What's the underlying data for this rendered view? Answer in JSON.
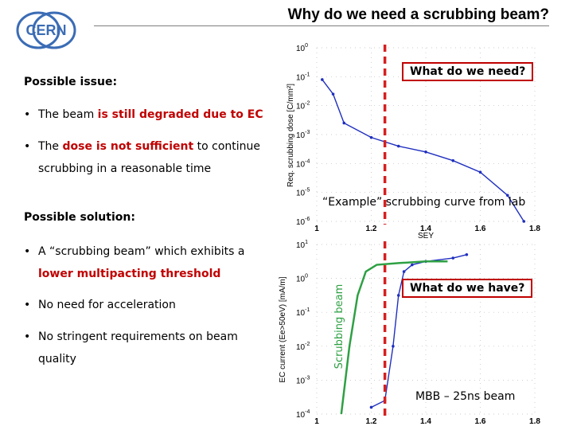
{
  "slide": {
    "title": "Why do we need a scrubbing beam?",
    "logo_text": "CERN"
  },
  "left": {
    "issue_header": "Possible issue:",
    "issue_1_pre": "The beam ",
    "issue_1_red": "is still degraded due to EC",
    "issue_2_pre": "The ",
    "issue_2_red": "dose is not sufficient",
    "issue_2_post": " to continue",
    "issue_2_cont": "scrubbing in a reasonable time",
    "solution_header": "Possible solution:",
    "sol_1": "A “scrubbing beam” which exhibits  a",
    "sol_1_red": "lower multipacting threshold",
    "sol_2": "No need for acceleration",
    "sol_3": "No stringent requirements on beam",
    "sol_3_cont": "quality",
    "bullet_glyph": "•"
  },
  "callouts": {
    "need": "What do we need?",
    "have": "What do we have?",
    "example_caption": "“Example” scrubbing curve from lab",
    "mbb_caption": "MBB – 25ns beam",
    "scrubbing_beam_label": "Scrubbing beam"
  },
  "colors": {
    "accent_red": "#c00000",
    "dashed_line": "#d42020",
    "curve_blue": "#1f2fbf",
    "scrub_green": "#2ea043"
  },
  "chart_data": [
    {
      "type": "line",
      "xlabel": "SEY",
      "ylabel": "Req. scrubbing dose [C/mm²]",
      "yscale": "log",
      "xlim": [
        1,
        1.8
      ],
      "ylim_exp": [
        -6,
        0
      ],
      "xticks": [
        "1",
        "1.2",
        "1.4",
        "1.6",
        "1.8"
      ],
      "yticks": [
        {
          "base": "10",
          "exp": "0"
        },
        {
          "base": "10",
          "exp": "-1"
        },
        {
          "base": "10",
          "exp": "-2"
        },
        {
          "base": "10",
          "exp": "-3"
        },
        {
          "base": "10",
          "exp": "-4"
        },
        {
          "base": "10",
          "exp": "-5"
        },
        {
          "base": "10",
          "exp": "-6"
        }
      ],
      "series": [
        {
          "x": [
            1.02,
            1.06,
            1.1,
            1.2,
            1.3,
            1.4,
            1.5,
            1.6,
            1.7,
            1.76
          ],
          "log_y": [
            -1.1,
            -1.6,
            -2.6,
            -3.1,
            -3.4,
            -3.6,
            -3.9,
            -4.3,
            -5.1,
            -6.0
          ]
        }
      ],
      "marker_x": 1.25
    },
    {
      "type": "line",
      "ylabel": "EC current (Ee>50eV) [mA/m]",
      "yscale": "log",
      "xlim": [
        1,
        1.8
      ],
      "ylim_exp": [
        -4,
        1
      ],
      "xticks": [
        "1",
        "1.2",
        "1.4",
        "1.6",
        "1.8"
      ],
      "yticks": [
        {
          "base": "10",
          "exp": "1"
        },
        {
          "base": "10",
          "exp": "0"
        },
        {
          "base": "10",
          "exp": "-1"
        },
        {
          "base": "10",
          "exp": "-2"
        },
        {
          "base": "10",
          "exp": "-3"
        },
        {
          "base": "10",
          "exp": "-4"
        }
      ],
      "series": [
        {
          "name": "MBB – 25ns beam",
          "x": [
            1.2,
            1.25,
            1.28,
            1.3,
            1.32,
            1.35,
            1.4,
            1.5,
            1.55
          ],
          "log_y": [
            -3.8,
            -3.6,
            -2.0,
            -0.5,
            0.2,
            0.4,
            0.5,
            0.6,
            0.7
          ]
        },
        {
          "name": "Scrubbing beam",
          "x": [
            1.09,
            1.12,
            1.15,
            1.18,
            1.22,
            1.3,
            1.4,
            1.48
          ],
          "log_y": [
            -4.0,
            -2.0,
            -0.5,
            0.2,
            0.4,
            0.45,
            0.5,
            0.5
          ]
        }
      ],
      "marker_x": 1.25
    }
  ]
}
